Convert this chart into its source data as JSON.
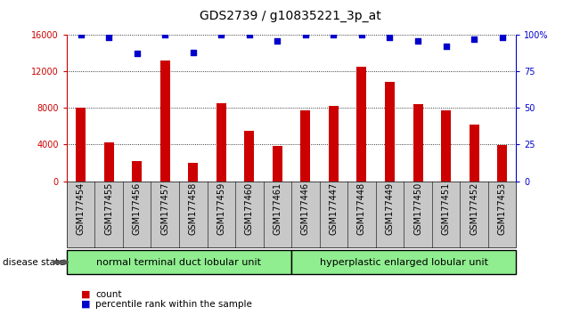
{
  "title": "GDS2739 / g10835221_3p_at",
  "categories": [
    "GSM177454",
    "GSM177455",
    "GSM177456",
    "GSM177457",
    "GSM177458",
    "GSM177459",
    "GSM177460",
    "GSM177461",
    "GSM177446",
    "GSM177447",
    "GSM177448",
    "GSM177449",
    "GSM177450",
    "GSM177451",
    "GSM177452",
    "GSM177453"
  ],
  "bar_values": [
    8000,
    4200,
    2200,
    13200,
    2000,
    8500,
    5500,
    3800,
    7700,
    8200,
    12500,
    10800,
    8400,
    7700,
    6200,
    3900
  ],
  "percentile_values": [
    100,
    98,
    87,
    100,
    88,
    100,
    100,
    96,
    100,
    100,
    100,
    98,
    96,
    92,
    97,
    98
  ],
  "bar_color": "#cc0000",
  "percentile_color": "#0000cc",
  "ylim_left": [
    0,
    16000
  ],
  "ylim_right": [
    0,
    100
  ],
  "yticks_left": [
    0,
    4000,
    8000,
    12000,
    16000
  ],
  "ytick_labels_left": [
    "0",
    "4000",
    "8000",
    "12000",
    "16000"
  ],
  "yticks_right": [
    0,
    25,
    50,
    75,
    100
  ],
  "ytick_labels_right": [
    "0",
    "25",
    "50",
    "75",
    "100%"
  ],
  "group1_label": "normal terminal duct lobular unit",
  "group2_label": "hyperplastic enlarged lobular unit",
  "group1_color": "#90ee90",
  "group2_color": "#90ee90",
  "group1_count": 8,
  "group2_count": 8,
  "disease_state_label": "disease state",
  "legend_count_label": "count",
  "legend_percentile_label": "percentile rank within the sample",
  "background_color": "#ffffff",
  "xtick_bg_color": "#c8c8c8",
  "title_fontsize": 10,
  "tick_fontsize": 7,
  "bar_width": 0.35
}
